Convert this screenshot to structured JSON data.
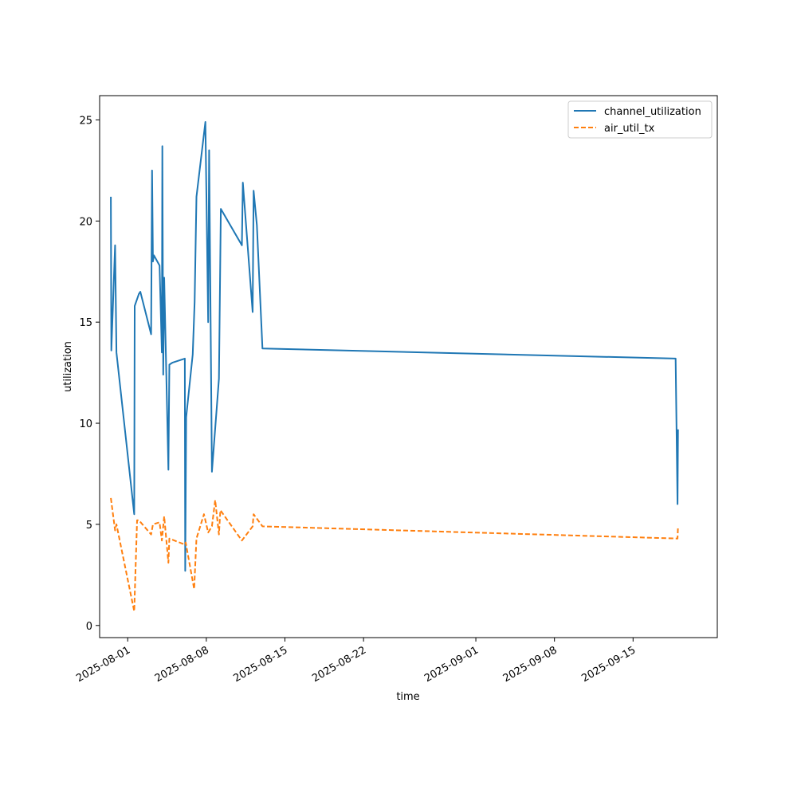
{
  "chart_data": {
    "type": "line",
    "title": "",
    "xlabel": "time",
    "ylabel": "utilization",
    "x_axis_type": "date",
    "xlim": [
      "2025-07-29T12:00",
      "2025-09-22T12:00"
    ],
    "ylim": [
      -0.6,
      26.2
    ],
    "x_ticks": [
      "2025-08-01",
      "2025-08-08",
      "2025-08-15",
      "2025-08-22",
      "2025-09-01",
      "2025-09-08",
      "2025-09-15"
    ],
    "y_ticks": [
      0,
      5,
      10,
      15,
      20,
      25
    ],
    "grid": false,
    "legend_position": "top-right",
    "series": [
      {
        "name": "channel_utilization",
        "color": "#1f77b4",
        "line_style": "solid",
        "points": [
          [
            "2025-07-30T12:00",
            21.2
          ],
          [
            "2025-07-30T13:00",
            13.6
          ],
          [
            "2025-07-30T21:00",
            18.8
          ],
          [
            "2025-07-31T00:00",
            13.5
          ],
          [
            "2025-08-01T14:00",
            5.5
          ],
          [
            "2025-08-01T15:00",
            15.8
          ],
          [
            "2025-08-02T00:00",
            16.4
          ],
          [
            "2025-08-02T03:00",
            16.5
          ],
          [
            "2025-08-03T02:00",
            14.4
          ],
          [
            "2025-08-03T04:00",
            22.5
          ],
          [
            "2025-08-03T06:00",
            18.0
          ],
          [
            "2025-08-03T08:00",
            18.3
          ],
          [
            "2025-08-03T20:00",
            17.8
          ],
          [
            "2025-08-04T01:00",
            13.5
          ],
          [
            "2025-08-04T02:00",
            23.7
          ],
          [
            "2025-08-04T04:00",
            12.4
          ],
          [
            "2025-08-04T06:00",
            17.2
          ],
          [
            "2025-08-04T15:00",
            7.7
          ],
          [
            "2025-08-04T17:00",
            12.9
          ],
          [
            "2025-08-05T00:00",
            13.0
          ],
          [
            "2025-08-06T02:00",
            13.2
          ],
          [
            "2025-08-06T03:00",
            2.7
          ],
          [
            "2025-08-06T05:00",
            10.3
          ],
          [
            "2025-08-06T19:00",
            13.4
          ],
          [
            "2025-08-06T23:00",
            16.0
          ],
          [
            "2025-08-07T03:00",
            21.2
          ],
          [
            "2025-08-07T22:00",
            24.9
          ],
          [
            "2025-08-08T04:00",
            15.0
          ],
          [
            "2025-08-08T06:00",
            23.5
          ],
          [
            "2025-08-08T12:00",
            7.6
          ],
          [
            "2025-08-09T03:00",
            12.2
          ],
          [
            "2025-08-09T07:00",
            20.6
          ],
          [
            "2025-08-11T04:00",
            18.8
          ],
          [
            "2025-08-11T06:00",
            21.9
          ],
          [
            "2025-08-12T03:00",
            15.5
          ],
          [
            "2025-08-12T05:00",
            21.5
          ],
          [
            "2025-08-12T12:00",
            19.8
          ],
          [
            "2025-08-13T00:00",
            13.7
          ],
          [
            "2025-09-18T19:00",
            13.2
          ],
          [
            "2025-09-18T23:00",
            6.0
          ],
          [
            "2025-09-19T00:00",
            9.7
          ]
        ]
      },
      {
        "name": "air_util_tx",
        "color": "#ff7f0e",
        "line_style": "dashed",
        "points": [
          [
            "2025-07-30T12:00",
            6.3
          ],
          [
            "2025-07-30T21:00",
            4.7
          ],
          [
            "2025-07-31T00:00",
            5.0
          ],
          [
            "2025-08-01T14:00",
            0.7
          ],
          [
            "2025-08-01T20:00",
            5.2
          ],
          [
            "2025-08-02T00:00",
            5.2
          ],
          [
            "2025-08-03T02:00",
            4.5
          ],
          [
            "2025-08-03T06:00",
            5.0
          ],
          [
            "2025-08-03T20:00",
            5.1
          ],
          [
            "2025-08-04T01:00",
            4.2
          ],
          [
            "2025-08-04T06:00",
            5.4
          ],
          [
            "2025-08-04T15:00",
            3.1
          ],
          [
            "2025-08-04T17:00",
            4.3
          ],
          [
            "2025-08-06T02:00",
            4.0
          ],
          [
            "2025-08-06T04:00",
            4.1
          ],
          [
            "2025-08-06T22:00",
            1.8
          ],
          [
            "2025-08-07T03:00",
            4.3
          ],
          [
            "2025-08-07T19:00",
            5.5
          ],
          [
            "2025-08-08T04:00",
            4.6
          ],
          [
            "2025-08-08T12:00",
            4.9
          ],
          [
            "2025-08-08T19:00",
            6.2
          ],
          [
            "2025-08-09T03:00",
            4.5
          ],
          [
            "2025-08-09T06:00",
            5.7
          ],
          [
            "2025-08-11T04:00",
            4.2
          ],
          [
            "2025-08-12T03:00",
            4.9
          ],
          [
            "2025-08-12T05:00",
            5.5
          ],
          [
            "2025-08-13T00:00",
            4.9
          ],
          [
            "2025-09-18T23:00",
            4.3
          ],
          [
            "2025-09-19T00:00",
            4.9
          ]
        ]
      }
    ]
  }
}
